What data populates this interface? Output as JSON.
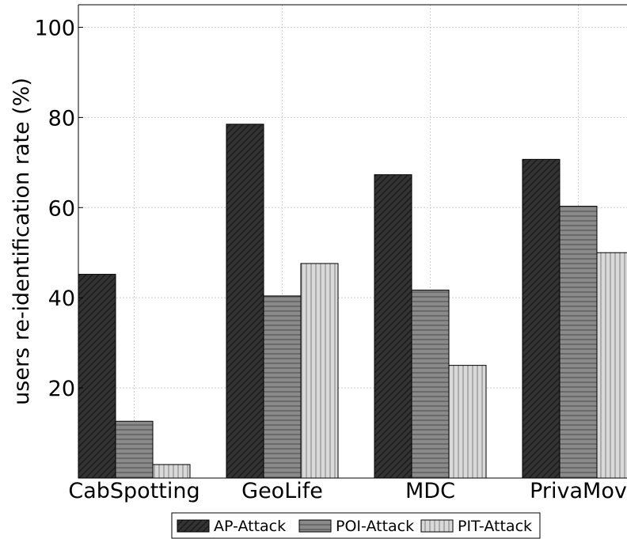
{
  "chart_data": {
    "type": "bar",
    "title": "",
    "xlabel": "",
    "ylabel": "users re-identification rate (%)",
    "categories": [
      "CabSpotting",
      "GeoLife",
      "MDC",
      "PrivaMov"
    ],
    "series": [
      {
        "name": "AP-Attack",
        "values": [
          45.2,
          78.5,
          67.3,
          70.7
        ],
        "color": "#333333",
        "pattern": "diagonal"
      },
      {
        "name": "POI-Attack",
        "values": [
          12.6,
          40.4,
          41.7,
          60.3
        ],
        "color": "#8a8a8a",
        "pattern": "horizontal"
      },
      {
        "name": "PIT-Attack",
        "values": [
          3.0,
          47.6,
          25.0,
          50.0
        ],
        "color": "#d9d9d9",
        "pattern": "vertical"
      }
    ],
    "ylim": [
      0,
      105
    ],
    "yticks": [
      20,
      40,
      60,
      80,
      100
    ],
    "grid": true,
    "legend_position": "bottom-center"
  }
}
